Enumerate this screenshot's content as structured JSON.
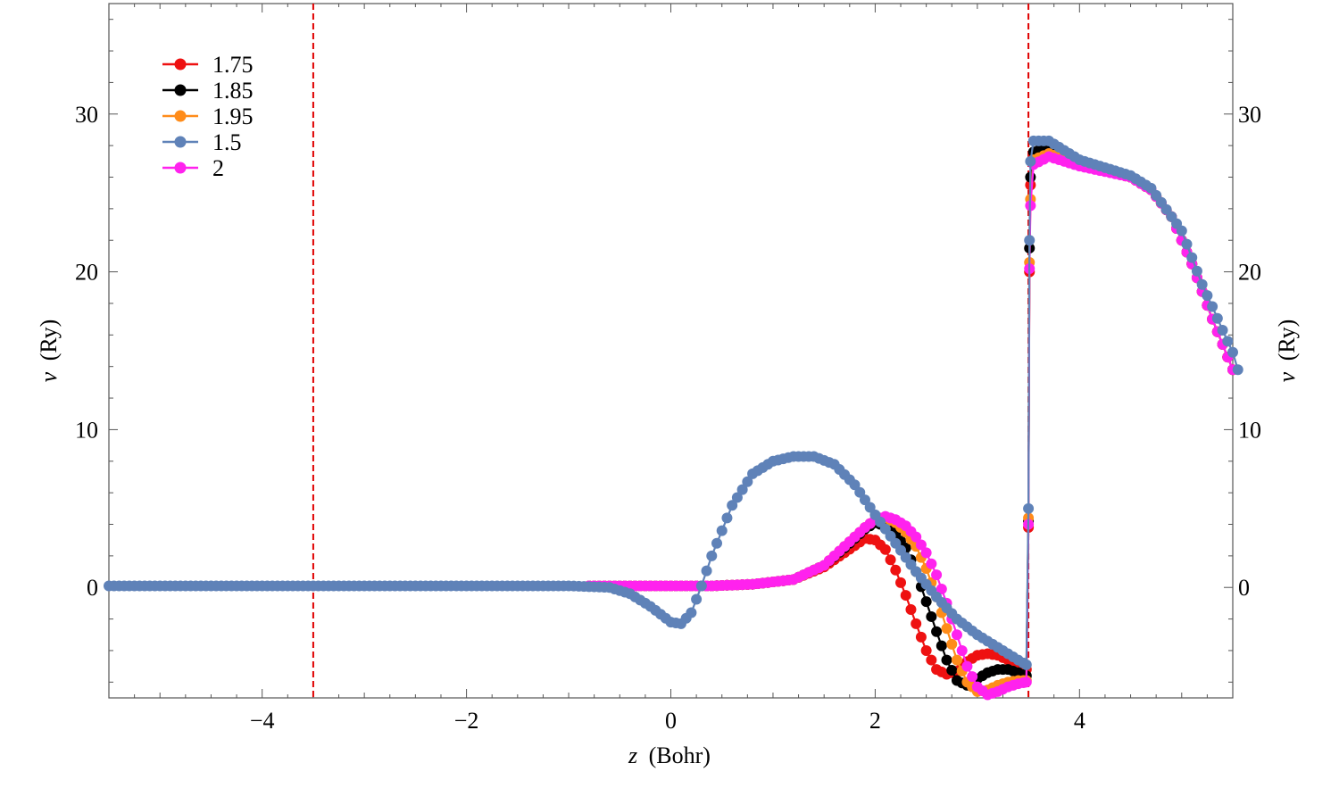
{
  "chart_data": {
    "type": "line",
    "xlabel_var": "z",
    "xlabel_unit": "(Bohr)",
    "ylabel_var": "v",
    "ylabel_unit": "(Ry)",
    "xlim": [
      -5.5,
      5.5
    ],
    "ylim": [
      -7,
      37
    ],
    "xticks": [
      -4,
      -2,
      0,
      2,
      4
    ],
    "yticks": [
      0,
      10,
      20,
      30
    ],
    "grid": false,
    "legend_position": "top-left",
    "vlines": [
      {
        "x": -3.5,
        "color": "#e00000",
        "style": "dashed"
      },
      {
        "x": 3.5,
        "color": "#e00000",
        "style": "dashed"
      }
    ],
    "series": [
      {
        "name": "1.75",
        "color": "#ee1111",
        "points": [
          [
            -0.8,
            0.1
          ],
          [
            0.0,
            0.1
          ],
          [
            0.4,
            0.1
          ],
          [
            0.8,
            0.2
          ],
          [
            1.2,
            0.5
          ],
          [
            1.5,
            1.3
          ],
          [
            1.7,
            2.2
          ],
          [
            1.9,
            3.1
          ],
          [
            2.0,
            3.0
          ],
          [
            2.1,
            2.4
          ],
          [
            2.2,
            1.1
          ],
          [
            2.3,
            -0.5
          ],
          [
            2.4,
            -2.3
          ],
          [
            2.5,
            -4.0
          ],
          [
            2.6,
            -5.2
          ],
          [
            2.7,
            -5.5
          ],
          [
            2.8,
            -5.3
          ],
          [
            2.9,
            -4.7
          ],
          [
            3.0,
            -4.3
          ],
          [
            3.1,
            -4.2
          ],
          [
            3.2,
            -4.3
          ],
          [
            3.3,
            -4.6
          ],
          [
            3.4,
            -5.0
          ],
          [
            3.48,
            -5.2
          ],
          [
            3.5,
            3.8
          ],
          [
            3.51,
            20.0
          ],
          [
            3.52,
            25.5
          ],
          [
            3.55,
            27.3
          ],
          [
            3.7,
            27.7
          ],
          [
            4.0,
            26.8
          ],
          [
            4.5,
            26.0
          ],
          [
            4.7,
            25.2
          ],
          [
            4.9,
            23.5
          ],
          [
            5.1,
            20.5
          ],
          [
            5.3,
            17.0
          ],
          [
            5.5,
            13.8
          ]
        ]
      },
      {
        "name": "1.85",
        "color": "#000000",
        "points": [
          [
            -0.8,
            0.1
          ],
          [
            0.0,
            0.1
          ],
          [
            0.4,
            0.1
          ],
          [
            0.8,
            0.2
          ],
          [
            1.2,
            0.5
          ],
          [
            1.5,
            1.4
          ],
          [
            1.7,
            2.5
          ],
          [
            1.9,
            3.7
          ],
          [
            2.0,
            4.1
          ],
          [
            2.1,
            3.9
          ],
          [
            2.2,
            3.4
          ],
          [
            2.3,
            2.5
          ],
          [
            2.4,
            1.0
          ],
          [
            2.5,
            -0.9
          ],
          [
            2.6,
            -2.8
          ],
          [
            2.7,
            -4.6
          ],
          [
            2.8,
            -5.9
          ],
          [
            2.9,
            -6.2
          ],
          [
            3.0,
            -5.8
          ],
          [
            3.1,
            -5.4
          ],
          [
            3.2,
            -5.2
          ],
          [
            3.3,
            -5.2
          ],
          [
            3.4,
            -5.4
          ],
          [
            3.48,
            -5.6
          ],
          [
            3.5,
            4.2
          ],
          [
            3.51,
            21.5
          ],
          [
            3.52,
            26.0
          ],
          [
            3.55,
            27.6
          ],
          [
            3.7,
            27.9
          ],
          [
            4.0,
            26.9
          ],
          [
            4.5,
            26.0
          ],
          [
            4.7,
            25.2
          ],
          [
            4.9,
            23.5
          ],
          [
            5.1,
            20.5
          ],
          [
            5.3,
            17.0
          ],
          [
            5.5,
            13.8
          ]
        ]
      },
      {
        "name": "1.95",
        "color": "#ff8c1a",
        "points": [
          [
            -0.8,
            0.1
          ],
          [
            0.0,
            0.1
          ],
          [
            0.4,
            0.1
          ],
          [
            0.8,
            0.2
          ],
          [
            1.2,
            0.5
          ],
          [
            1.5,
            1.4
          ],
          [
            1.7,
            2.6
          ],
          [
            1.9,
            3.8
          ],
          [
            2.0,
            4.3
          ],
          [
            2.1,
            4.4
          ],
          [
            2.2,
            4.1
          ],
          [
            2.3,
            3.5
          ],
          [
            2.4,
            2.6
          ],
          [
            2.5,
            1.2
          ],
          [
            2.6,
            -0.6
          ],
          [
            2.7,
            -2.6
          ],
          [
            2.8,
            -4.6
          ],
          [
            2.9,
            -6.0
          ],
          [
            3.0,
            -6.6
          ],
          [
            3.1,
            -6.5
          ],
          [
            3.2,
            -6.2
          ],
          [
            3.3,
            -6.0
          ],
          [
            3.4,
            -5.9
          ],
          [
            3.48,
            -5.9
          ],
          [
            3.5,
            4.4
          ],
          [
            3.51,
            20.6
          ],
          [
            3.52,
            24.6
          ],
          [
            3.55,
            27.1
          ],
          [
            3.7,
            27.5
          ],
          [
            4.0,
            26.8
          ],
          [
            4.5,
            26.0
          ],
          [
            4.7,
            25.2
          ],
          [
            4.9,
            23.5
          ],
          [
            5.1,
            20.5
          ],
          [
            5.3,
            17.0
          ],
          [
            5.5,
            13.8
          ]
        ]
      },
      {
        "name": "1.5",
        "color": "#5f82b8",
        "points": [
          [
            -5.5,
            0.1
          ],
          [
            -4.0,
            0.1
          ],
          [
            -3.0,
            0.1
          ],
          [
            -2.0,
            0.1
          ],
          [
            -1.0,
            0.1
          ],
          [
            -0.6,
            0.0
          ],
          [
            -0.4,
            -0.4
          ],
          [
            -0.2,
            -1.2
          ],
          [
            0.0,
            -2.2
          ],
          [
            0.1,
            -2.3
          ],
          [
            0.2,
            -1.6
          ],
          [
            0.3,
            0.1
          ],
          [
            0.4,
            2.0
          ],
          [
            0.6,
            5.2
          ],
          [
            0.8,
            7.2
          ],
          [
            1.0,
            8.0
          ],
          [
            1.2,
            8.3
          ],
          [
            1.4,
            8.3
          ],
          [
            1.6,
            7.8
          ],
          [
            1.8,
            6.5
          ],
          [
            2.0,
            4.6
          ],
          [
            2.2,
            2.8
          ],
          [
            2.4,
            1.0
          ],
          [
            2.6,
            -0.6
          ],
          [
            2.8,
            -2.0
          ],
          [
            3.0,
            -3.0
          ],
          [
            3.2,
            -3.8
          ],
          [
            3.4,
            -4.6
          ],
          [
            3.48,
            -4.9
          ],
          [
            3.5,
            5.0
          ],
          [
            3.51,
            22.0
          ],
          [
            3.52,
            27.0
          ],
          [
            3.55,
            28.3
          ],
          [
            3.7,
            28.3
          ],
          [
            4.0,
            27.1
          ],
          [
            4.2,
            26.7
          ],
          [
            4.5,
            26.1
          ],
          [
            4.7,
            25.3
          ],
          [
            4.9,
            23.5
          ],
          [
            5.0,
            22.6
          ],
          [
            5.1,
            20.9
          ],
          [
            5.2,
            19.2
          ],
          [
            5.3,
            17.8
          ],
          [
            5.4,
            16.3
          ],
          [
            5.5,
            14.9
          ],
          [
            5.55,
            13.8
          ]
        ]
      },
      {
        "name": "2",
        "color": "#ff22ee",
        "points": [
          [
            -0.8,
            0.1
          ],
          [
            0.0,
            0.1
          ],
          [
            0.4,
            0.1
          ],
          [
            0.8,
            0.2
          ],
          [
            1.2,
            0.5
          ],
          [
            1.5,
            1.4
          ],
          [
            1.7,
            2.6
          ],
          [
            1.9,
            3.8
          ],
          [
            2.0,
            4.3
          ],
          [
            2.1,
            4.5
          ],
          [
            2.2,
            4.3
          ],
          [
            2.3,
            3.9
          ],
          [
            2.4,
            3.2
          ],
          [
            2.5,
            2.2
          ],
          [
            2.6,
            0.8
          ],
          [
            2.7,
            -1.0
          ],
          [
            2.8,
            -3.0
          ],
          [
            2.9,
            -5.0
          ],
          [
            3.0,
            -6.3
          ],
          [
            3.1,
            -6.8
          ],
          [
            3.2,
            -6.6
          ],
          [
            3.3,
            -6.3
          ],
          [
            3.4,
            -6.1
          ],
          [
            3.48,
            -6.0
          ],
          [
            3.5,
            4.0
          ],
          [
            3.51,
            20.2
          ],
          [
            3.52,
            24.2
          ],
          [
            3.55,
            26.8
          ],
          [
            3.7,
            27.3
          ],
          [
            4.0,
            26.7
          ],
          [
            4.5,
            26.0
          ],
          [
            4.7,
            25.2
          ],
          [
            4.9,
            23.5
          ],
          [
            5.1,
            20.5
          ],
          [
            5.3,
            17.0
          ],
          [
            5.5,
            13.8
          ]
        ]
      }
    ]
  }
}
